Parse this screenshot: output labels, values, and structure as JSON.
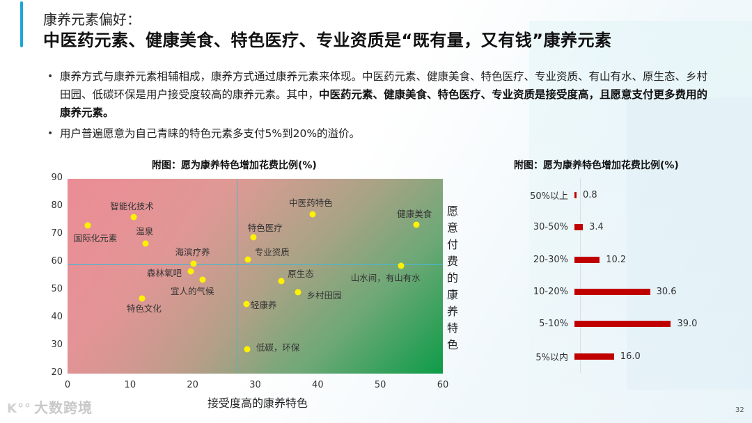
{
  "header": {
    "subtitle": "康养元素偏好：",
    "title": "中医药元素、健康美食、特色医疗、专业资质是“既有量，又有钱”康养元素"
  },
  "bullets": [
    {
      "text_normal": "康养方式与康养元素相辅相成，康养方式通过康养元素来体现。中医药元素、健康美食、特色医疗、专业资质、有山有水、原生态、乡村田园、低碳环保是用户接受度较高的康养元素。其中，",
      "text_bold": "中医药元素、健康美食、特色医疗、专业资质是接受度高，且愿意支付更多费用的康养元素。"
    },
    {
      "text_normal": "用户普遍愿意为自己青睐的特色元素多支付5%到20%的溢价。",
      "text_bold": ""
    }
  ],
  "chart_data": [
    {
      "type": "scatter",
      "title": "附图：愿为康养特色增加花费比例(%)",
      "xlabel": "接受度高的康养特色",
      "ylabel": "愿意付费的康养特色",
      "xlim": [
        0,
        60
      ],
      "ylim": [
        20,
        90
      ],
      "xticks": [
        0,
        10,
        20,
        30,
        40,
        50,
        60
      ],
      "yticks": [
        20,
        30,
        40,
        50,
        60,
        70,
        80,
        90
      ],
      "reference_lines": {
        "x": 27,
        "y": 59.3
      },
      "background": "gradient red (top-left) to green (bottom-right)",
      "point_color": "#fff200",
      "points": [
        {
          "label": "国际化元素",
          "x": 3.2,
          "y": 73.3
        },
        {
          "label": "智能化技术",
          "x": 10.6,
          "y": 76.3
        },
        {
          "label": "温泉",
          "x": 12.5,
          "y": 66.8
        },
        {
          "label": "海滨疗养",
          "x": 20.2,
          "y": 59.5
        },
        {
          "label": "森林氧吧",
          "x": 19.7,
          "y": 56.8
        },
        {
          "label": "宜人的气候",
          "x": 21.6,
          "y": 53.8
        },
        {
          "label": "特色文化",
          "x": 11.9,
          "y": 47.0
        },
        {
          "label": "中医药特色",
          "x": 39.2,
          "y": 77.3
        },
        {
          "label": "特色医疗",
          "x": 29.7,
          "y": 69.0
        },
        {
          "label": "专业资质",
          "x": 28.8,
          "y": 61.0
        },
        {
          "label": "原生态",
          "x": 34.2,
          "y": 53.3
        },
        {
          "label": "乡村田园",
          "x": 36.9,
          "y": 49.3
        },
        {
          "label": "轻康养",
          "x": 28.6,
          "y": 45.0
        },
        {
          "label": "低碳，环保",
          "x": 28.7,
          "y": 28.8
        },
        {
          "label": "健康美食",
          "x": 55.8,
          "y": 73.5
        },
        {
          "label": "山水间，有山有水",
          "x": 53.3,
          "y": 58.8
        }
      ]
    },
    {
      "type": "bar",
      "orientation": "horizontal",
      "title": "附图：愿为康养特色增加花费比例(%)",
      "categories": [
        "50%以上",
        "30-50%",
        "20-30%",
        "10-20%",
        "5-10%",
        "5%以内"
      ],
      "values": [
        0.8,
        3.4,
        10.2,
        30.6,
        39.0,
        16.0
      ],
      "value_labels": [
        "0.8",
        "3.4",
        "10.2",
        "30.6",
        "39.0",
        "16.0"
      ],
      "bar_color": "#c00000"
    }
  ],
  "footer": {
    "logo_text": "大数跨境",
    "logo_mark": "K°°",
    "page_number": "32"
  }
}
